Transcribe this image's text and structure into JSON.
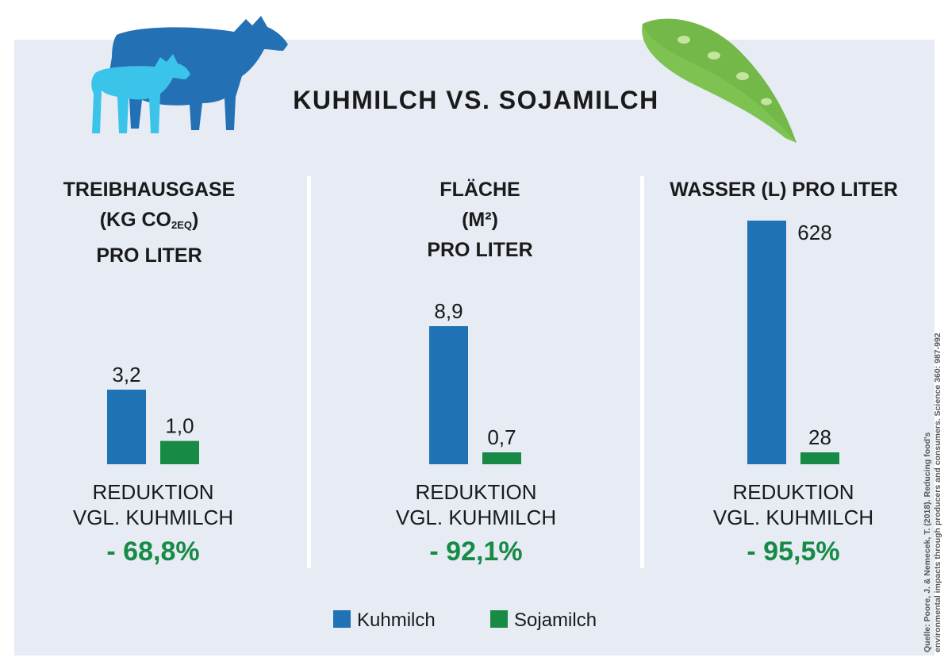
{
  "colors": {
    "kuhmilch": "#1f72b3",
    "sojamilch": "#178a45",
    "reduction": "#178a45",
    "cow_adult": "#2470b4",
    "cow_calf": "#3bc4ea",
    "pea_pod": "#7ec352"
  },
  "icons": [
    "cow-icon",
    "calf-icon",
    "pea-pod-icon"
  ],
  "title": "KUHMILCH VS. SOJAMILCH",
  "columns": [
    {
      "title_line1": "TREIBHAUSGASE",
      "title_line2_pre": "(KG CO",
      "title_line2_sub": "2EQ",
      "title_line2_post": ")",
      "title_line3": "PRO LITER",
      "kuhmilch_label": "3,2",
      "sojamilch_label": "1,0",
      "reduction_line1": "REDUKTION",
      "reduction_line2": "VGL. KUHMILCH",
      "reduction_value": "- 68,8%"
    },
    {
      "title_line1": "FLÄCHE",
      "title_line2": "(M²)",
      "title_line3": "PRO LITER",
      "kuhmilch_label": "8,9",
      "sojamilch_label": "0,7",
      "reduction_line1": "REDUKTION",
      "reduction_line2": "VGL. KUHMILCH",
      "reduction_value": "- 92,1%"
    },
    {
      "title_line1": "WASSER (L) PRO LITER",
      "kuhmilch_label": "628",
      "sojamilch_label": "28",
      "reduction_line1": "REDUKTION",
      "reduction_line2": "VGL. KUHMILCH",
      "reduction_value": "- 95,5%"
    }
  ],
  "legend": [
    {
      "name": "Kuhmilch",
      "color": "#1f72b3"
    },
    {
      "name": "Sojamilch",
      "color": "#178a45"
    }
  ],
  "source_line1": "Quelle: Poore, J. & Nemecek, T. (2018). Reducing food's",
  "source_line2": "environmental impacts through producers and consumers. Science 360: 987-992",
  "chart_data": [
    {
      "type": "bar",
      "title": "TREIBHAUSGASE (KG CO2EQ) PRO LITER",
      "categories": [
        "Kuhmilch",
        "Sojamilch"
      ],
      "values": [
        3.2,
        1.0
      ],
      "value_labels": [
        "3,2",
        "1,0"
      ],
      "reduction": "- 68,8%",
      "legend": "bottom-center",
      "grid": false
    },
    {
      "type": "bar",
      "title": "FLÄCHE (M²) PRO LITER",
      "categories": [
        "Kuhmilch",
        "Sojamilch"
      ],
      "values": [
        8.9,
        0.7
      ],
      "value_labels": [
        "8,9",
        "0,7"
      ],
      "reduction": "- 92,1%",
      "legend": "bottom-center",
      "grid": false
    },
    {
      "type": "bar",
      "title": "WASSER (L) PRO LITER",
      "categories": [
        "Kuhmilch",
        "Sojamilch"
      ],
      "values": [
        628,
        28
      ],
      "value_labels": [
        "628",
        "28"
      ],
      "reduction": "- 95,5%",
      "legend": "bottom-center",
      "grid": false
    }
  ]
}
